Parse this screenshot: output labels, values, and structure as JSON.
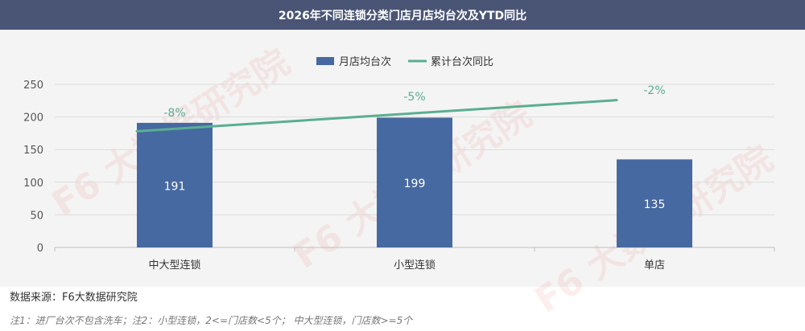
{
  "header": {
    "title": "2026年不同连锁分类门店月店均台次及YTD同比"
  },
  "watermark": {
    "text": "F6 大数据研究院"
  },
  "chart_data": {
    "type": "bar",
    "categories": [
      "中大型连锁",
      "小型连锁",
      "单店"
    ],
    "series": [
      {
        "name": "月店均台次",
        "type": "bar",
        "values": [
          191,
          199,
          135
        ],
        "labels": [
          "191",
          "199",
          "135"
        ],
        "color": "#4669a1"
      },
      {
        "name": "累计台次同比",
        "type": "line",
        "values": [
          -8,
          -5,
          -2
        ],
        "labels": [
          "-8%",
          "-5%",
          "-2%"
        ],
        "color": "#5aae92"
      }
    ],
    "y_ticks": [
      "0",
      "50",
      "100",
      "150",
      "200",
      "250"
    ],
    "ylim": [
      0,
      250
    ],
    "grid": true,
    "legend": "top-center"
  },
  "footer": {
    "source": "数据来源：F6大数据研究院",
    "note": "注1：进厂台次不包含洗车；注2：小型连锁，2<=门店数<5个； 中大型连锁，门店数>=5个"
  }
}
